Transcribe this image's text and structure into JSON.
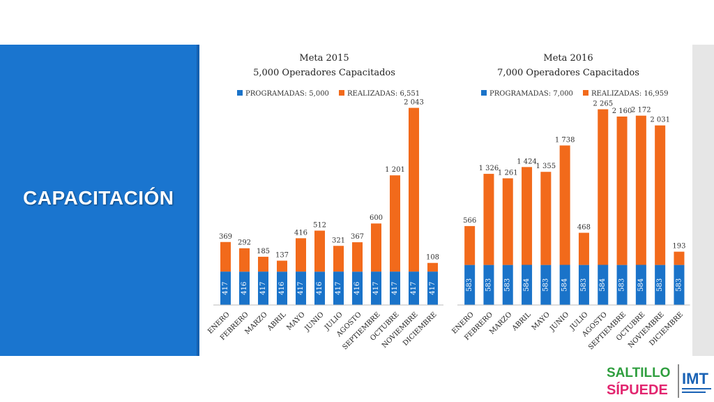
{
  "slide": {
    "section_title": "CAPACITACIÓN",
    "colors": {
      "panel": "#1a75cf",
      "programadas": "#1a73c9",
      "realizadas": "#f26a1b"
    }
  },
  "logo": {
    "line1": "SALTILLO",
    "line2": "SÍPUEDE",
    "org": "IMT"
  },
  "chart_data": [
    {
      "type": "bar",
      "stacked": true,
      "title": "Meta 2015",
      "subtitle": "5,000 Operadores Capacitados",
      "legend": [
        "PROGRAMADAS: 5,000",
        "REALIZADAS: 6,551"
      ],
      "legend_position": "top",
      "categories": [
        "ENERO",
        "FEBRERO",
        "MARZO",
        "ABRIL",
        "MAYO",
        "JUNIO",
        "JULIO",
        "AGOSTO",
        "SEPTIEMBRE",
        "OCTUBRE",
        "NOVIEMBRE",
        "DICIEMBRE"
      ],
      "series": [
        {
          "name": "PROGRAMADAS",
          "values": [
            417,
            416,
            417,
            416,
            417,
            416,
            417,
            416,
            417,
            417,
            417,
            417
          ],
          "labels": [
            "417",
            "416",
            "417",
            "416",
            "417",
            "416",
            "417",
            "416",
            "417",
            "417",
            "417",
            "417"
          ]
        },
        {
          "name": "REALIZADAS",
          "values": [
            369,
            292,
            185,
            137,
            416,
            512,
            321,
            367,
            600,
            1201,
            2043,
            108
          ],
          "labels": [
            "369",
            "292",
            "185",
            "137",
            "416",
            "512",
            "321",
            "367",
            "600",
            "1 201",
            "2 043",
            "108"
          ]
        }
      ],
      "ylim": [
        0,
        2700
      ]
    },
    {
      "type": "bar",
      "stacked": true,
      "title": "Meta 2016",
      "subtitle": "7,000 Operadores Capacitados",
      "legend": [
        "PROGRAMADAS: 7,000",
        "REALIZADAS: 16,959"
      ],
      "legend_position": "top",
      "categories": [
        "ENERO",
        "FEBRERO",
        "MARZO",
        "ABRIL",
        "MAYO",
        "JUNIO",
        "JULIO",
        "AGOSTO",
        "SEPTIEMBRE",
        "OCTUBRE",
        "NOVIEMBRE",
        "DICIEMBRE"
      ],
      "series": [
        {
          "name": "PROGRAMADAS",
          "values": [
            583,
            583,
            583,
            584,
            583,
            584,
            583,
            584,
            583,
            584,
            583,
            583
          ],
          "labels": [
            "583",
            "583",
            "583",
            "584",
            "583",
            "584",
            "583",
            "584",
            "583",
            "584",
            "583",
            "583"
          ]
        },
        {
          "name": "REALIZADAS",
          "values": [
            566,
            1326,
            1261,
            1424,
            1355,
            1738,
            468,
            2265,
            2160,
            2172,
            2031,
            193
          ],
          "labels": [
            "566",
            "1 326",
            "1 261",
            "1 424",
            "1 355",
            "1 738",
            "468",
            "2 265",
            "2 160",
            "2 172",
            "2 031",
            "193"
          ]
        }
      ],
      "ylim": [
        0,
        3200
      ]
    }
  ]
}
